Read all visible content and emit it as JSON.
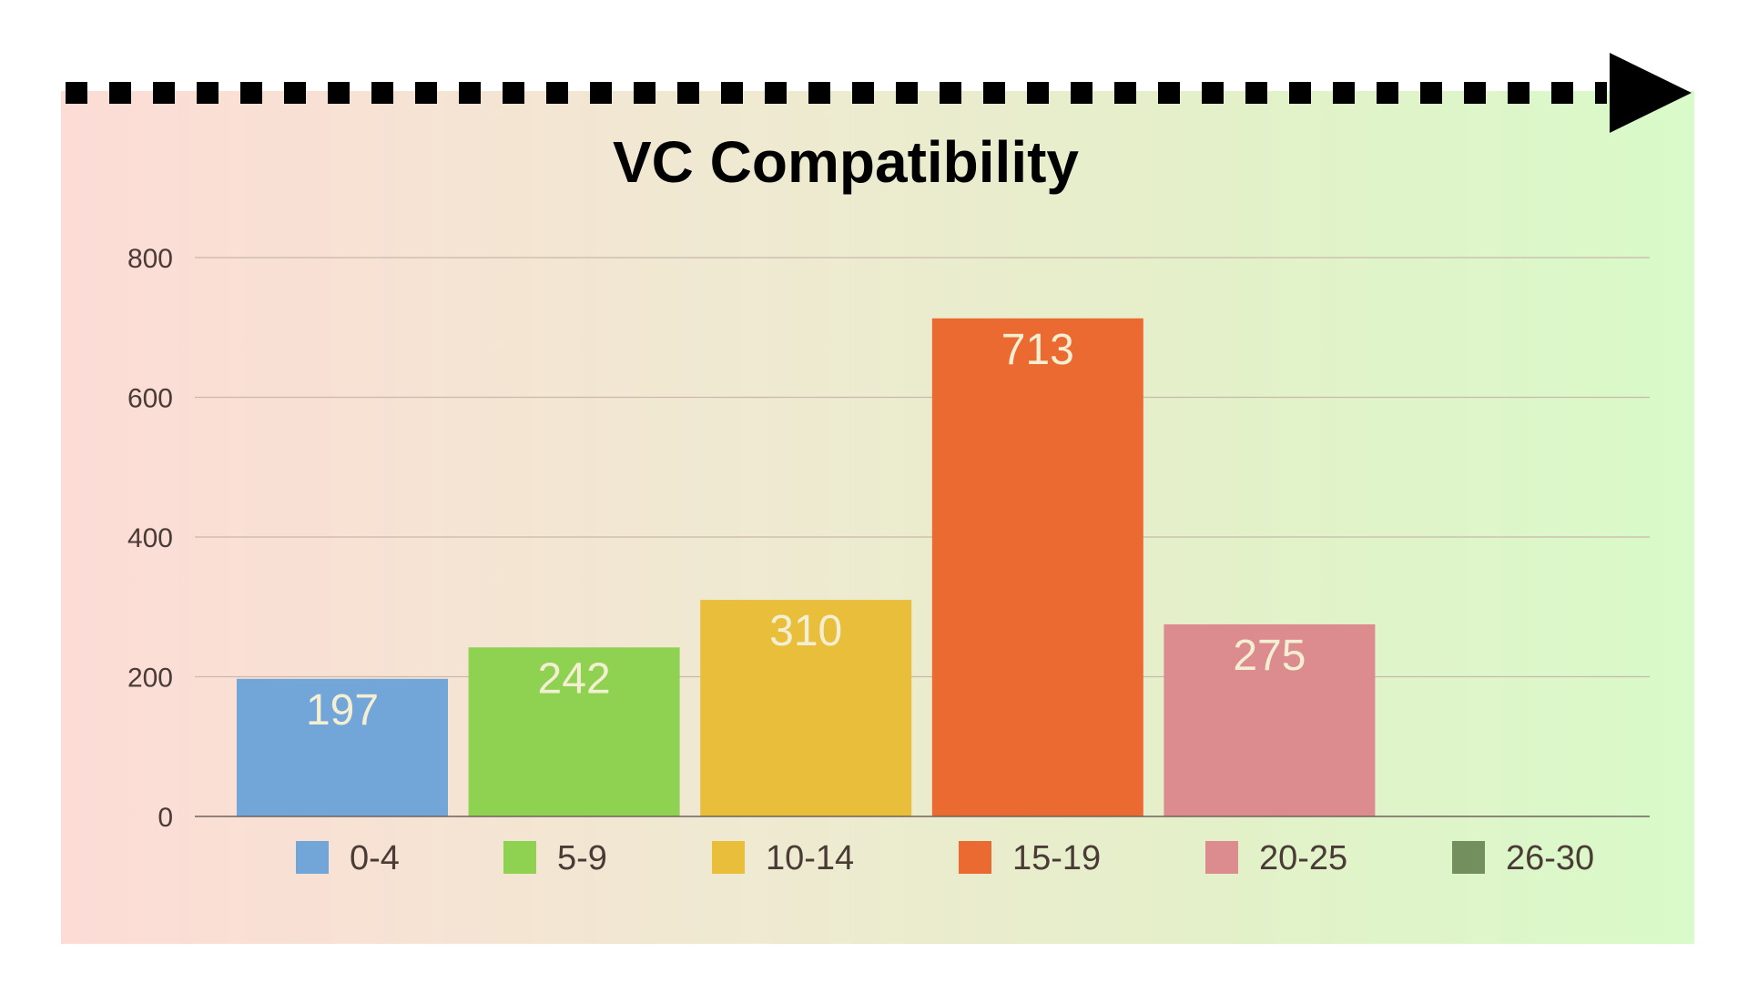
{
  "chart_data": {
    "type": "bar",
    "title": "VC Compatibility",
    "xlabel": "",
    "ylabel": "",
    "ylim": [
      0,
      800
    ],
    "yticks": [
      0,
      200,
      400,
      600,
      800
    ],
    "grid": true,
    "legend_position": "bottom",
    "categories": [
      "0-4",
      "5-9",
      "10-14",
      "15-19",
      "20-25",
      "26-30"
    ],
    "values": [
      197,
      242,
      310,
      713,
      275,
      null
    ],
    "colors": [
      "#72a6d9",
      "#8fd252",
      "#e9be3a",
      "#ea6a31",
      "#dc8b8e",
      "#738f5d"
    ],
    "background_gradient": [
      "#fddcd6",
      "#d9fac9"
    ],
    "arrow_color": "#000000"
  }
}
